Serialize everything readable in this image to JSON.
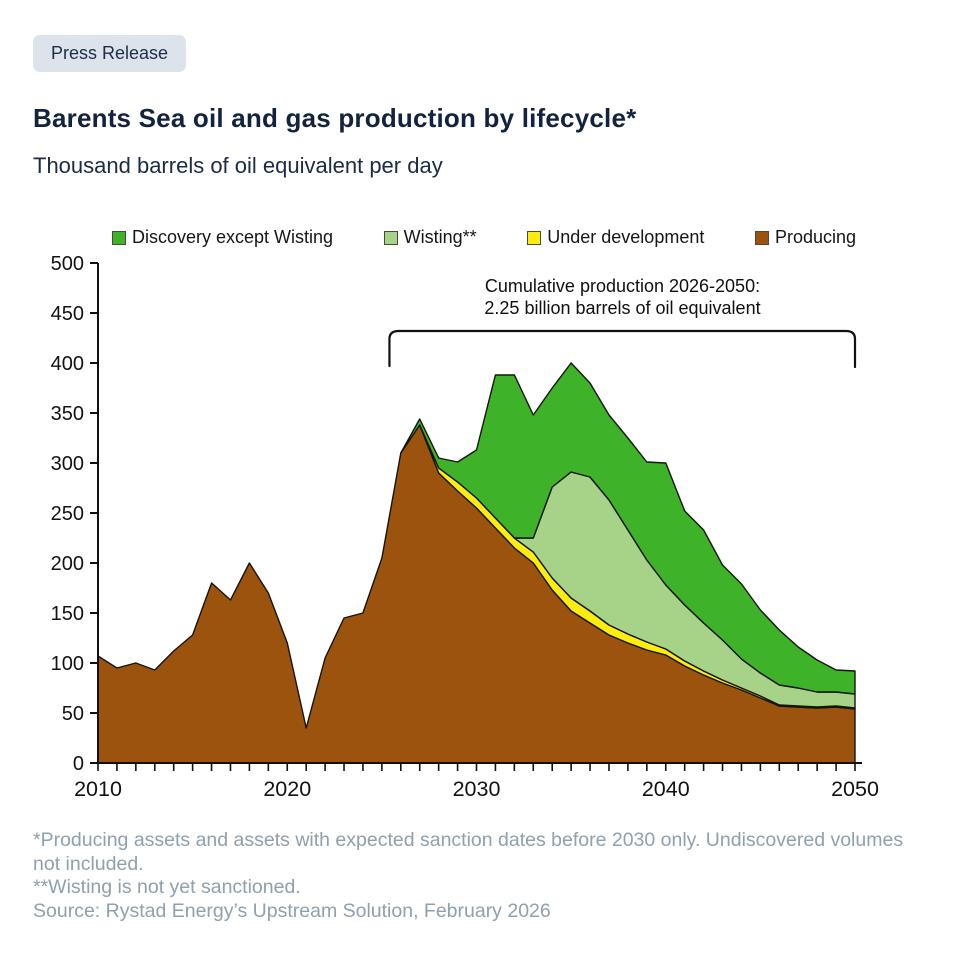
{
  "badge": {
    "label": "Press Release"
  },
  "chart_data": {
    "type": "area",
    "stacked": true,
    "title": "Barents Sea oil and gas production by lifecycle*",
    "subtitle": "Thousand barrels of oil equivalent per day",
    "grid": false,
    "legend_position": "top",
    "ylim": [
      0,
      500
    ],
    "y_ticks": [
      0,
      50,
      100,
      150,
      200,
      250,
      300,
      350,
      400,
      450,
      500
    ],
    "x_ticks": [
      2010,
      2020,
      2030,
      2040,
      2050
    ],
    "x": [
      2010,
      2011,
      2012,
      2013,
      2014,
      2015,
      2016,
      2017,
      2018,
      2019,
      2020,
      2021,
      2022,
      2023,
      2024,
      2025,
      2026,
      2027,
      2028,
      2029,
      2030,
      2031,
      2032,
      2033,
      2034,
      2035,
      2036,
      2037,
      2038,
      2039,
      2040,
      2041,
      2042,
      2043,
      2044,
      2045,
      2046,
      2047,
      2048,
      2049,
      2050
    ],
    "series": [
      {
        "id": "producing",
        "name": "Producing",
        "color": "#9b530e",
        "values": [
          107,
          95,
          100,
          93,
          112,
          128,
          180,
          163,
          200,
          170,
          120,
          35,
          105,
          145,
          150,
          205,
          310,
          338,
          290,
          272,
          255,
          235,
          215,
          200,
          173,
          152,
          140,
          128,
          120,
          113,
          108,
          97,
          88,
          80,
          73,
          65,
          57,
          56,
          55,
          56,
          54
        ]
      },
      {
        "id": "under-development",
        "name": "Under development",
        "color": "#fdec10",
        "values": [
          0,
          0,
          0,
          0,
          0,
          0,
          0,
          0,
          0,
          0,
          0,
          0,
          0,
          0,
          0,
          0,
          0,
          0,
          5,
          9,
          10,
          10,
          10,
          11,
          12,
          13,
          12,
          10,
          9,
          8,
          6,
          5,
          4,
          3,
          2,
          2,
          1,
          1,
          1,
          1,
          1
        ]
      },
      {
        "id": "wisting",
        "name": "Wisting**",
        "color": "#a6d387",
        "values": [
          0,
          0,
          0,
          0,
          0,
          0,
          0,
          0,
          0,
          0,
          0,
          0,
          0,
          0,
          0,
          0,
          0,
          0,
          0,
          0,
          0,
          0,
          0,
          14,
          91,
          126,
          134,
          125,
          104,
          82,
          64,
          56,
          48,
          40,
          29,
          23,
          20,
          18,
          15,
          14,
          14
        ]
      },
      {
        "id": "discovery-except-wisting",
        "name": "Discovery except Wisting",
        "color": "#3eb228",
        "values": [
          0,
          0,
          0,
          0,
          0,
          0,
          0,
          0,
          0,
          0,
          0,
          0,
          0,
          0,
          0,
          0,
          0,
          6,
          10,
          20,
          48,
          143,
          163,
          123,
          99,
          109,
          94,
          85,
          92,
          98,
          122,
          94,
          93,
          75,
          75,
          63,
          55,
          41,
          32,
          22,
          23
        ]
      }
    ],
    "legend": [
      {
        "id": "discovery-except-wisting",
        "label": "Discovery except Wisting",
        "color": "#3eb228"
      },
      {
        "id": "wisting",
        "label": "Wisting**",
        "color": "#a6d387"
      },
      {
        "id": "under-development",
        "label": "Under development",
        "color": "#fdec10"
      },
      {
        "id": "producing",
        "label": "Producing",
        "color": "#9b530e"
      }
    ],
    "annotation": {
      "line1": "Cumulative production 2026-2050:",
      "line2": "2.25 billion barrels of oil equivalent",
      "bracket_from": 2025.4,
      "bracket_to": 2050
    }
  },
  "footnotes": {
    "line1": "*Producing assets and assets with expected sanction dates before 2030 only. Undiscovered volumes not included.",
    "line2": "**Wisting is not yet sanctioned.",
    "line3": "Source: Rystad Energy’s Upstream Solution, February 2026"
  },
  "colors": {
    "title_navy": "#13223e",
    "badge_background": "#dce3eb",
    "footnote_gray": "#8fa0ae",
    "axis_black": "#111111"
  }
}
